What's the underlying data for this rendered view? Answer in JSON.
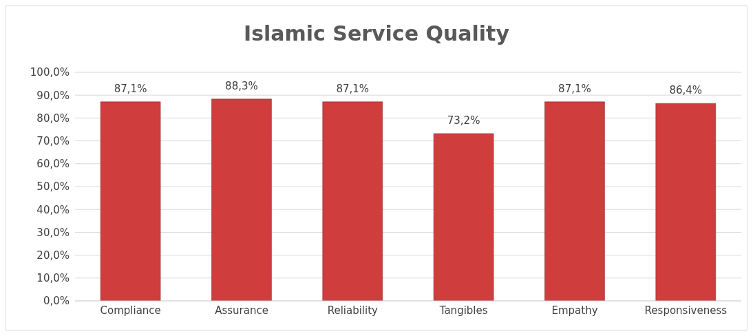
{
  "chart_data": {
    "type": "bar",
    "title": "Islamic Service Quality",
    "categories": [
      "Compliance",
      "Assurance",
      "Reliability",
      "Tangibles",
      "Empathy",
      "Responsiveness"
    ],
    "values": [
      87.1,
      88.3,
      87.1,
      73.2,
      87.1,
      86.4
    ],
    "value_labels": [
      "87,1%",
      "88,3%",
      "87,1%",
      "73,2%",
      "87,1%",
      "86,4%"
    ],
    "color": "#cf3d3d",
    "ylim": [
      0,
      100
    ],
    "yticks": [
      {
        "value": 0,
        "label": "0,0%"
      },
      {
        "value": 10,
        "label": "10,0%"
      },
      {
        "value": 20,
        "label": "20,0%"
      },
      {
        "value": 30,
        "label": "30,0%"
      },
      {
        "value": 40,
        "label": "40,0%"
      },
      {
        "value": 50,
        "label": "50,0%"
      },
      {
        "value": 60,
        "label": "60,0%"
      },
      {
        "value": 70,
        "label": "70,0%"
      },
      {
        "value": 80,
        "label": "80,0%"
      },
      {
        "value": 90,
        "label": "90,0%"
      },
      {
        "value": 100,
        "label": "100,0%"
      }
    ],
    "grid": "y",
    "legend": false
  }
}
